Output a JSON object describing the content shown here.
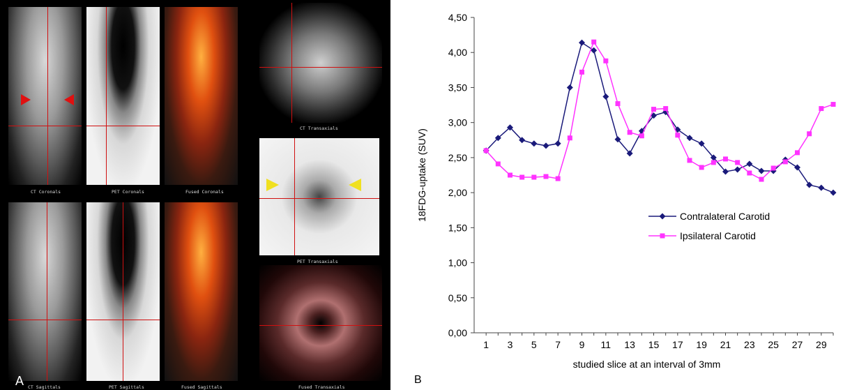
{
  "panel_a": {
    "letter": "A",
    "captions": {
      "ct_coronals": "CT Coronals",
      "pet_coronals": "PET Coronals",
      "fused_coronals": "Fused Coronals",
      "ct_transaxials": "CT Transaxials",
      "ct_sagittals": "CT Sagittals",
      "pet_sagittals": "PET Sagittals",
      "fused_sagittals": "Fused Sagittals",
      "pet_transaxials": "PET Transaxials",
      "fused_transaxials": "Fused Transaxials"
    },
    "colors": {
      "crosshair": "#d01010",
      "ct_arrow": "#e01010",
      "pet_arrow": "#f0e020"
    }
  },
  "panel_b": {
    "letter": "B"
  },
  "chart_data": {
    "type": "line",
    "title": "",
    "xlabel": "studied slice at an interval of 3mm",
    "ylabel": "18FDG-uptake (SUV)",
    "ylim": [
      0,
      4.5
    ],
    "xlim": [
      0,
      30
    ],
    "y_ticks": [
      "0,00",
      "0,50",
      "1,00",
      "1,50",
      "2,00",
      "2,50",
      "3,00",
      "3,50",
      "4,00",
      "4,50"
    ],
    "x_ticks": [
      "1",
      "3",
      "5",
      "7",
      "9",
      "11",
      "13",
      "15",
      "17",
      "19",
      "21",
      "23",
      "25",
      "27",
      "29"
    ],
    "x": [
      1,
      2,
      3,
      4,
      5,
      6,
      7,
      8,
      9,
      10,
      11,
      12,
      13,
      14,
      15,
      16,
      17,
      18,
      19,
      20,
      21,
      22,
      23,
      24,
      25,
      26,
      27,
      28,
      29,
      30
    ],
    "grid": false,
    "legend_position": "center-right",
    "series": [
      {
        "name": "Contralateral Carotid",
        "color": "#1a1a7a",
        "marker": "diamond",
        "values": [
          2.6,
          2.78,
          2.93,
          2.75,
          2.7,
          2.67,
          2.7,
          3.5,
          4.14,
          4.03,
          3.37,
          2.76,
          2.56,
          2.88,
          3.1,
          3.15,
          2.9,
          2.78,
          2.7,
          2.5,
          2.3,
          2.33,
          2.41,
          2.31,
          2.31,
          2.47,
          2.36,
          2.11,
          2.07,
          2.0
        ]
      },
      {
        "name": "Ipsilateral Carotid",
        "color": "#ff33ff",
        "marker": "square",
        "values": [
          2.6,
          2.41,
          2.25,
          2.22,
          2.22,
          2.23,
          2.2,
          2.78,
          3.72,
          4.15,
          3.88,
          3.27,
          2.86,
          2.81,
          3.19,
          3.2,
          2.82,
          2.46,
          2.36,
          2.43,
          2.48,
          2.43,
          2.28,
          2.19,
          2.35,
          2.44,
          2.57,
          2.84,
          3.2,
          3.26
        ]
      }
    ]
  }
}
